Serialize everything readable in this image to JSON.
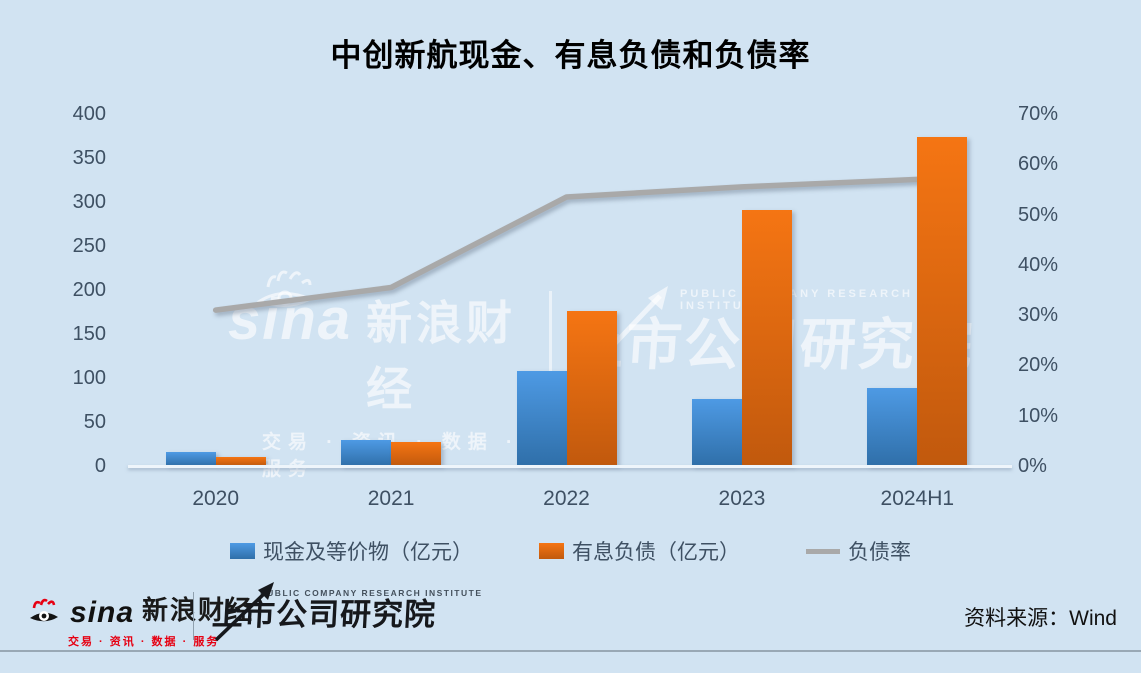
{
  "title": "中创新航现金、有息负债和负债率",
  "chart_data": {
    "type": "bar",
    "subtype": "grouped-bars-with-line",
    "categories": [
      "2020",
      "2021",
      "2022",
      "2023",
      "2024H1"
    ],
    "series": [
      {
        "name": "现金及等价物（亿元）",
        "type": "bar",
        "axis": "left",
        "color_top": "#4e9ae4",
        "color_bottom": "#2f6fa9",
        "values": [
          16,
          30,
          108,
          76,
          89
        ]
      },
      {
        "name": "有息负债（亿元）",
        "type": "bar",
        "axis": "left",
        "color_top": "#f57513",
        "color_bottom": "#c1590d",
        "values": [
          10,
          27,
          176,
          291,
          374
        ]
      },
      {
        "name": "负债率",
        "type": "line",
        "axis": "right",
        "color": "#a9a9a9",
        "values": [
          31,
          35.5,
          53.5,
          55.5,
          57
        ]
      }
    ],
    "left_axis": {
      "min": 0,
      "max": 400,
      "step": 50,
      "ticks": [
        "400",
        "350",
        "300",
        "250",
        "200",
        "150",
        "100",
        "50",
        "0"
      ]
    },
    "right_axis": {
      "min": 0,
      "max": 70,
      "step": 10,
      "ticks": [
        "70%",
        "60%",
        "50%",
        "40%",
        "30%",
        "20%",
        "10%",
        "0%"
      ]
    },
    "legend_position": "bottom",
    "grid": false
  },
  "legend": {
    "items": [
      {
        "label": "现金及等价物（亿元）",
        "swatch": "blue-bar"
      },
      {
        "label": "有息负债（亿元）",
        "swatch": "orange-bar"
      },
      {
        "label": "负债率",
        "swatch": "gray-line"
      }
    ]
  },
  "watermark": {
    "sina_brand": "sina",
    "sina_name": "新浪财经",
    "sina_tagline": "交易 · 资讯 · 数据 · 服务",
    "institute_eng": "PUBLIC COMPANY RESEARCH INSTITUTE",
    "institute_name": "上市公司研究院"
  },
  "footer": {
    "sina_brand": "sina",
    "sina_name": "新浪财经",
    "sina_tagline": "交易 · 资讯 · 数据 · 服务",
    "institute_eng": "PUBLIC COMPANY RESEARCH INSTITUTE",
    "institute_name": "上市公司研究院",
    "source": "资料来源：Wind"
  },
  "colors": {
    "background": "#d1e3f2",
    "axis_text": "#3e5063",
    "bar_blue_top": "#4e9ae4",
    "bar_blue_bottom": "#2f6fa9",
    "bar_orange_top": "#f57513",
    "bar_orange_bottom": "#c1590d",
    "line_gray": "#a9a9a9",
    "footer_red": "#e60012"
  }
}
